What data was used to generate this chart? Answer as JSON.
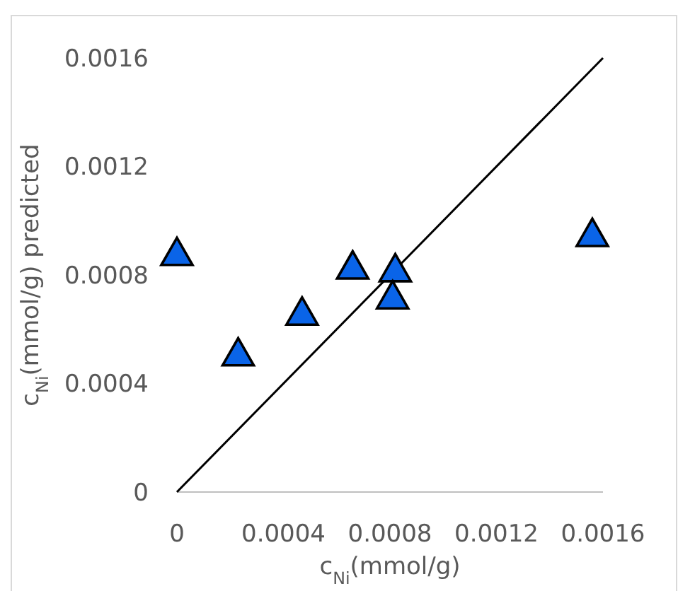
{
  "chart_data": {
    "type": "scatter",
    "xlabel": "c$_{Ni}$(mmol/g)",
    "ylabel": "c$_{Ni}$(mmol/g)  predicted",
    "xlim": [
      0,
      0.0016
    ],
    "ylim": [
      0,
      0.0016
    ],
    "xticks": [
      0,
      0.0004,
      0.0008,
      0.0012,
      0.0016
    ],
    "yticks": [
      0,
      0.0004,
      0.0008,
      0.0012,
      0.0016
    ],
    "grid": false,
    "series": [
      {
        "color": "#0a64e8",
        "marker": "triangle",
        "x": [
          0,
          0.00023,
          0.00047,
          0.00066,
          0.00082,
          0.00081,
          0.00156
        ],
        "values": [
          0.00088,
          0.00051,
          0.00066,
          0.00083,
          0.00082,
          0.00072,
          0.00095
        ]
      },
      {
        "type": "line",
        "color": "#000000",
        "marker": "none",
        "x": [
          0,
          0.0016
        ],
        "values": [
          0,
          0.0016
        ]
      }
    ]
  }
}
